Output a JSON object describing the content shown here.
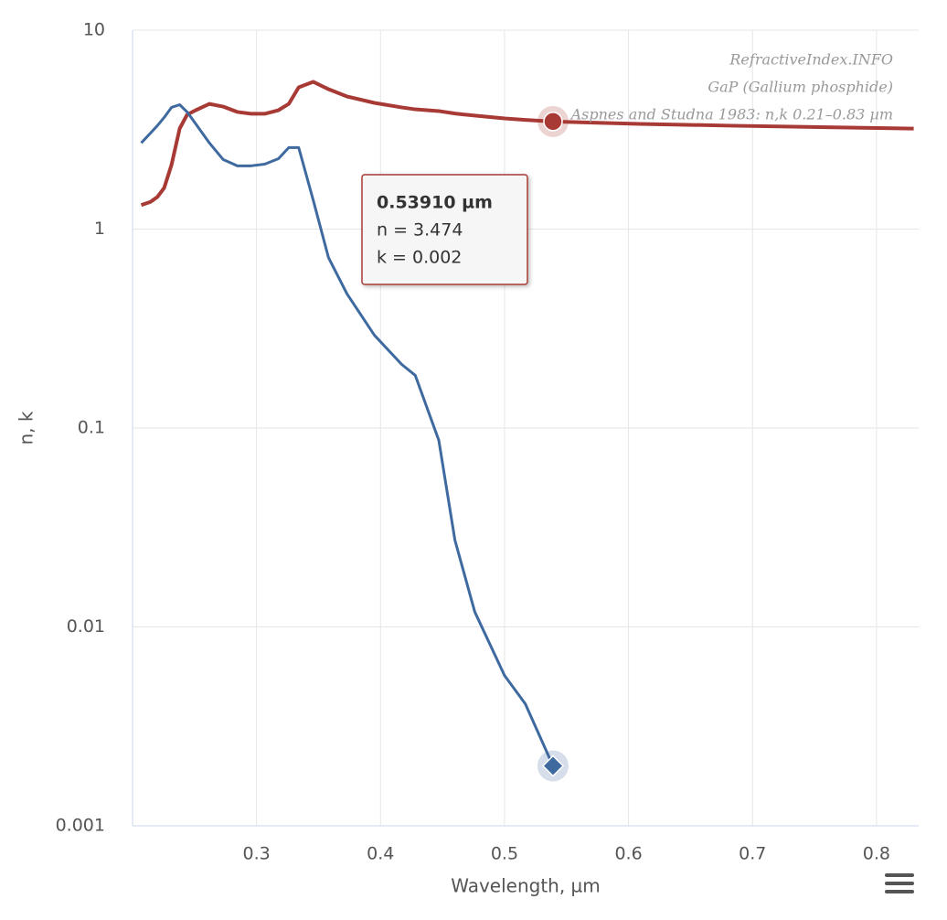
{
  "chart_data": {
    "type": "line",
    "x_label": "Wavelength, µm",
    "y_label": "n, k",
    "annotations": [
      "RefractiveIndex.INFO",
      "GaP (Gallium phosphide)",
      "Aspnes and Studna 1983: n,k 0.21–0.83 µm"
    ],
    "x": [
      0.207,
      0.2145,
      0.22,
      0.2255,
      0.2314,
      0.238,
      0.244,
      0.251,
      0.262,
      0.273,
      0.2845,
      0.2956,
      0.3066,
      0.3177,
      0.326,
      0.334,
      0.3457,
      0.358,
      0.373,
      0.395,
      0.417,
      0.428,
      0.447,
      0.46,
      0.476,
      0.5,
      0.5168,
      0.5391,
      0.609,
      0.683,
      0.83
    ],
    "series": [
      {
        "color": "#a83a36",
        "values": [
          1.32,
          1.37,
          1.45,
          1.61,
          2.1,
          3.2,
          3.76,
          3.96,
          4.26,
          4.13,
          3.88,
          3.8,
          3.8,
          3.96,
          4.26,
          5.16,
          5.5,
          5.05,
          4.64,
          4.31,
          4.09,
          4.0,
          3.92,
          3.81,
          3.72,
          3.6,
          3.54,
          3.474,
          3.38,
          3.31,
          3.2
        ]
      },
      {
        "color": "#3e6aa0",
        "values": [
          2.71,
          3.04,
          3.31,
          3.64,
          4.09,
          4.22,
          3.88,
          3.38,
          2.71,
          2.24,
          2.08,
          2.08,
          2.12,
          2.26,
          2.57,
          2.57,
          1.4,
          0.72,
          0.472,
          0.293,
          0.209,
          0.184,
          0.0867,
          0.0273,
          0.0119,
          0.0057,
          0.0041,
          0.002,
          null,
          null,
          null
        ]
      }
    ],
    "xlim": [
      0.2,
      0.834
    ],
    "xticks": [
      0.3,
      0.4,
      0.5,
      0.6,
      0.7,
      0.8
    ],
    "ylim": [
      0.001,
      10
    ],
    "yticks": [
      0.001,
      0.01,
      0.1,
      1,
      10
    ],
    "yscale": "log",
    "grid": true,
    "tooltip": {
      "x": {
        "value": 0.5391,
        "label": "0.53910 µm"
      },
      "lines": [
        "n = 3.474",
        "k = 0.002"
      ]
    }
  }
}
